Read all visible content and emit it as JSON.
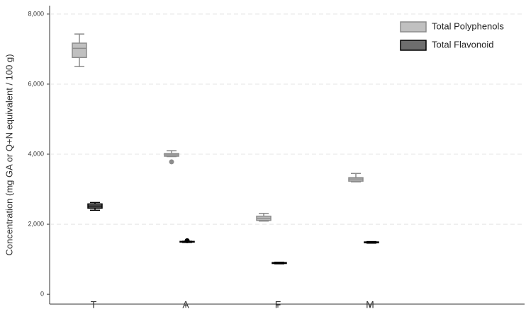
{
  "chart_data": {
    "type": "box",
    "y_label": "Concentration (mg GA or Q+N equivalent / 100 g)",
    "categories": [
      "T",
      "A",
      "F",
      "M"
    ],
    "ylim": [
      -280,
      8240
    ],
    "yticks": [
      0,
      {
        "value": 2000,
        "label": "2,000"
      },
      {
        "value": 4000,
        "label": "4,000"
      },
      {
        "value": 6000,
        "label": "6,000"
      },
      {
        "value": 8000,
        "label": "8,000"
      }
    ],
    "grid": true,
    "legend": "top-right",
    "series": [
      {
        "name": "Total Polyphenols",
        "color": "#c0c0c0",
        "edge": "#8c8c8c",
        "values": [
          {
            "min": 6500,
            "q1": 6760,
            "median": 7020,
            "q3": 7170,
            "max": 7430,
            "outliers": []
          },
          {
            "min": 3930,
            "q1": 3940,
            "median": 3980,
            "q3": 4020,
            "max": 4100,
            "outliers": [
              3780
            ]
          },
          {
            "min": 2090,
            "q1": 2110,
            "median": 2170,
            "q3": 2230,
            "max": 2310,
            "outliers": []
          },
          {
            "min": 3210,
            "q1": 3230,
            "median": 3290,
            "q3": 3330,
            "max": 3450,
            "outliers": []
          }
        ]
      },
      {
        "name": "Total Flavonoid",
        "color": "#6e6e6e",
        "edge": "#000000",
        "values": [
          {
            "min": 2400,
            "q1": 2460,
            "median": 2520,
            "q3": 2580,
            "max": 2620,
            "outliers": []
          },
          {
            "min": 1480,
            "q1": 1490,
            "median": 1500,
            "q3": 1510,
            "max": 1515,
            "outliers": [
              1530
            ]
          },
          {
            "min": 870,
            "q1": 880,
            "median": 895,
            "q3": 905,
            "max": 915,
            "outliers": []
          },
          {
            "min": 1460,
            "q1": 1470,
            "median": 1480,
            "q3": 1495,
            "max": 1505,
            "outliers": []
          }
        ]
      }
    ]
  }
}
